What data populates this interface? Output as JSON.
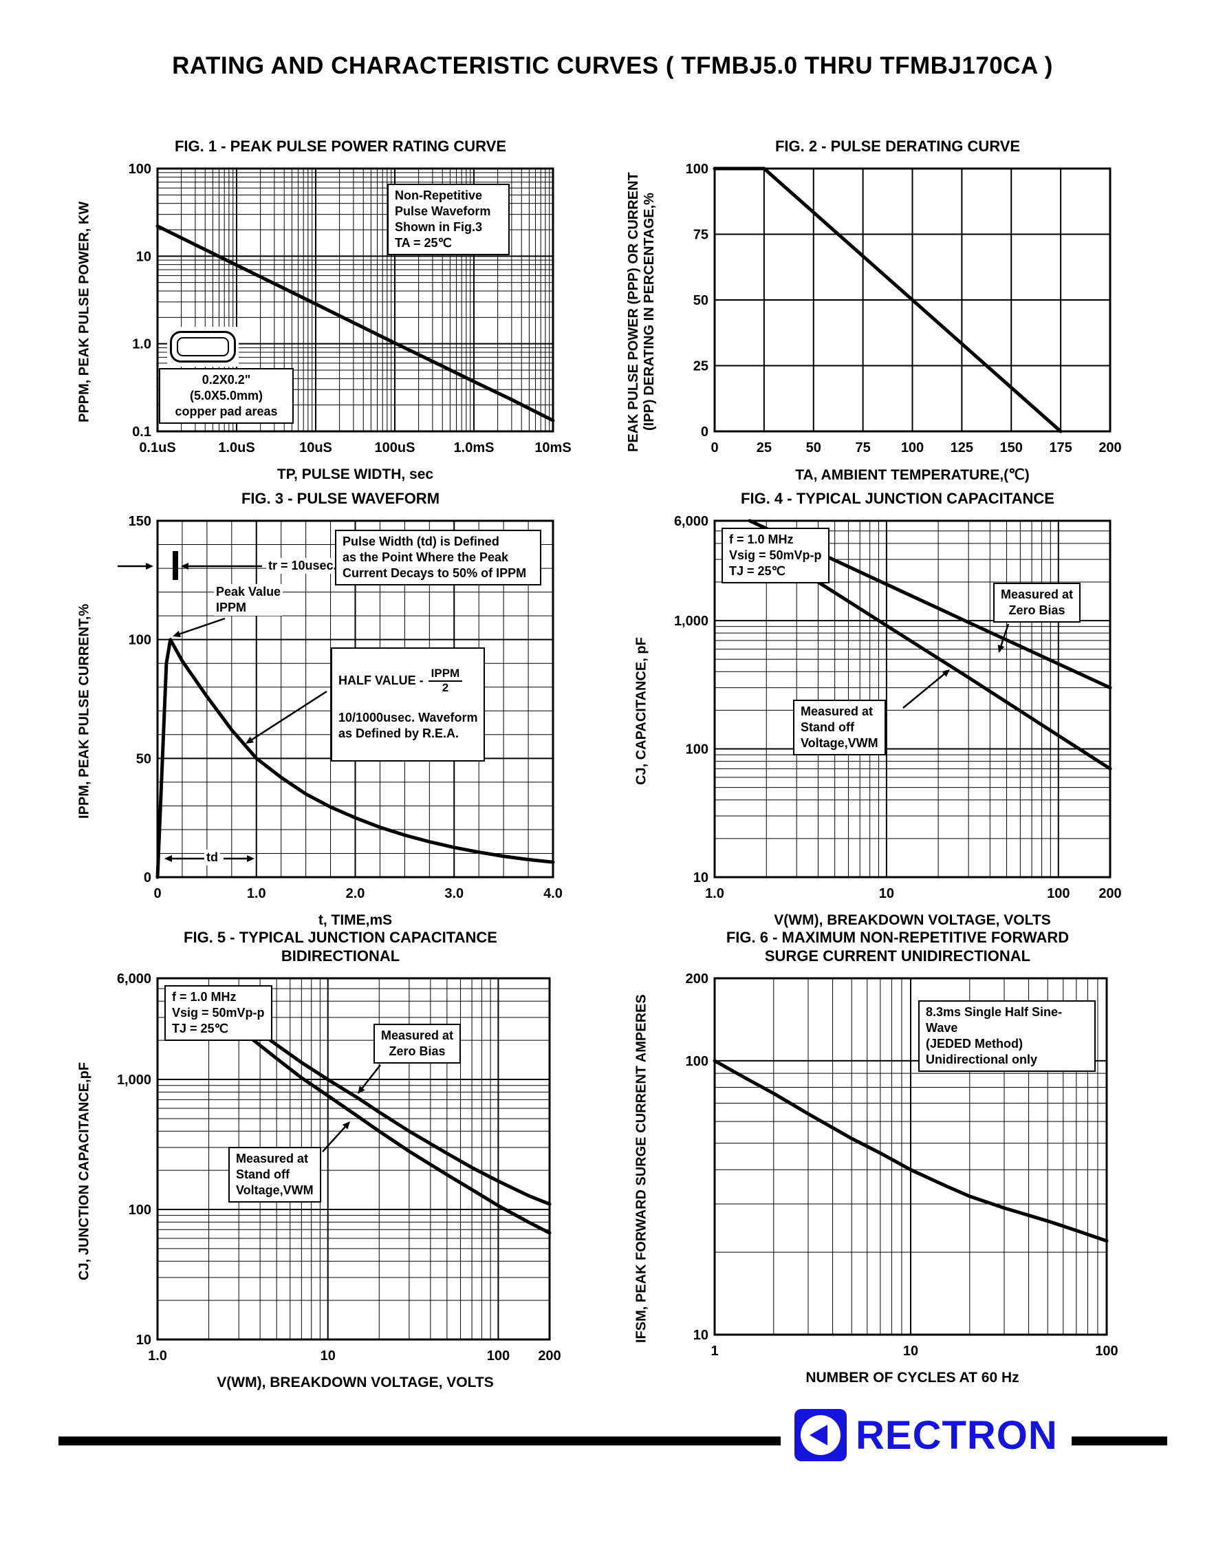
{
  "page": {
    "title": "RATING AND CHARACTERISTIC CURVES ( TFMBJ5.0 THRU TFMBJ170CA )"
  },
  "brand": {
    "name": "RECTRON",
    "color": "#1414dc"
  },
  "chart_data": [
    {
      "id": "fig1",
      "type": "line",
      "title": "FIG. 1 - PEAK PULSE POWER RATING CURVE",
      "xlabel": "TP, PULSE WIDTH, sec",
      "ylabel": "PPPM, PEAK PULSE POWER, KW",
      "xscale": "log",
      "yscale": "log",
      "xlim": [
        1e-07,
        0.01
      ],
      "ylim": [
        0.1,
        100
      ],
      "xticks": [
        {
          "v": 1e-07,
          "label": "0.1uS"
        },
        {
          "v": 1e-06,
          "label": "1.0uS"
        },
        {
          "v": 1e-05,
          "label": "10uS"
        },
        {
          "v": 0.0001,
          "label": "100uS"
        },
        {
          "v": 0.001,
          "label": "1.0mS"
        },
        {
          "v": 0.01,
          "label": "10mS"
        }
      ],
      "yticks": [
        {
          "v": 0.1,
          "label": "0.1"
        },
        {
          "v": 1,
          "label": "1.0"
        },
        {
          "v": 10,
          "label": "10"
        },
        {
          "v": 100,
          "label": "100"
        }
      ],
      "series": [
        {
          "name": "peak-pulse-power",
          "points": [
            [
              1e-07,
              22
            ],
            [
              3e-07,
              13.5
            ],
            [
              1e-06,
              7.9
            ],
            [
              3e-06,
              4.85
            ],
            [
              1e-05,
              2.84
            ],
            [
              3e-05,
              1.74
            ],
            [
              0.0001,
              1.02
            ],
            [
              0.0003,
              0.63
            ],
            [
              0.001,
              0.37
            ],
            [
              0.003,
              0.23
            ],
            [
              0.01,
              0.133
            ]
          ]
        }
      ],
      "annotations": {
        "note": "Non-Repetitive\nPulse Waveform\nShown in Fig.3\nTA = 25℃",
        "pad": "0.2X0.2\"(5.0X5.0mm)\ncopper pad areas"
      }
    },
    {
      "id": "fig2",
      "type": "line",
      "title": "FIG. 2 - PULSE DERATING CURVE",
      "xlabel": "TA, AMBIENT TEMPERATURE,(℃)",
      "ylabel": "PEAK PULSE POWER (PPP) OR CURRENT\n(IPP) DERATING IN PERCENTAGE,%",
      "xscale": "linear",
      "yscale": "linear",
      "xlim": [
        0,
        200
      ],
      "ylim": [
        0,
        100
      ],
      "xgrid": 25,
      "ygrid": 25,
      "xticks": [
        {
          "v": 0,
          "label": "0"
        },
        {
          "v": 25,
          "label": "25"
        },
        {
          "v": 50,
          "label": "50"
        },
        {
          "v": 75,
          "label": "75"
        },
        {
          "v": 100,
          "label": "100"
        },
        {
          "v": 125,
          "label": "125"
        },
        {
          "v": 150,
          "label": "150"
        },
        {
          "v": 175,
          "label": "175"
        },
        {
          "v": 200,
          "label": "200"
        }
      ],
      "yticks": [
        {
          "v": 0,
          "label": "0"
        },
        {
          "v": 25,
          "label": "25"
        },
        {
          "v": 50,
          "label": "50"
        },
        {
          "v": 75,
          "label": "75"
        },
        {
          "v": 100,
          "label": "100"
        }
      ],
      "series": [
        {
          "name": "derating",
          "points": [
            [
              0,
              100
            ],
            [
              25,
              100
            ],
            [
              175,
              0
            ]
          ]
        }
      ]
    },
    {
      "id": "fig3",
      "type": "line",
      "title": "FIG. 3 - PULSE WAVEFORM",
      "xlabel": "t, TIME,mS",
      "ylabel": "IPPM, PEAK PULSE CURRENT,%",
      "xscale": "linear",
      "yscale": "linear",
      "xlim": [
        0,
        4
      ],
      "ylim": [
        0,
        150
      ],
      "xgrid": 0.25,
      "ygrid": 10,
      "xticks": [
        {
          "v": 0,
          "label": "0"
        },
        {
          "v": 1,
          "label": "1.0"
        },
        {
          "v": 2,
          "label": "2.0"
        },
        {
          "v": 3,
          "label": "3.0"
        },
        {
          "v": 4,
          "label": "4.0"
        }
      ],
      "yticks": [
        {
          "v": 0,
          "label": "0"
        },
        {
          "v": 50,
          "label": "50"
        },
        {
          "v": 100,
          "label": "100"
        },
        {
          "v": 150,
          "label": "150"
        }
      ],
      "series": [
        {
          "name": "pulse-waveform",
          "points": [
            [
              0,
              0
            ],
            [
              0.05,
              50
            ],
            [
              0.09,
              90
            ],
            [
              0.13,
              100
            ],
            [
              0.25,
              91
            ],
            [
              0.5,
              76
            ],
            [
              0.75,
              62
            ],
            [
              1,
              50
            ],
            [
              1.25,
              42
            ],
            [
              1.5,
              35
            ],
            [
              1.75,
              29.5
            ],
            [
              2,
              25
            ],
            [
              2.25,
              21
            ],
            [
              2.5,
              17.7
            ],
            [
              2.75,
              14.9
            ],
            [
              3,
              12.5
            ],
            [
              3.25,
              10.5
            ],
            [
              3.5,
              8.8
            ],
            [
              3.75,
              7.4
            ],
            [
              4,
              6.3
            ]
          ]
        }
      ],
      "annotations": {
        "tr": "tr = 10usec.",
        "peak": "Peak Value\nIPPM",
        "defn": "Pulse Width (td) is Defined\nas the Point Where the Peak\nCurrent Decays to 50% of IPPM",
        "half": "HALF VALUE -",
        "half_frac_top": "IPPM",
        "half_frac_bot": "2",
        "wave": "10/1000usec. Waveform\nas Defined by R.E.A.",
        "td": "td"
      }
    },
    {
      "id": "fig4",
      "type": "line",
      "title": "FIG. 4 - TYPICAL JUNCTION CAPACITANCE",
      "xlabel": "V(WM), BREAKDOWN VOLTAGE, VOLTS",
      "ylabel": "CJ, CAPACITANCE, pF",
      "xscale": "log",
      "yscale": "log",
      "xlim": [
        1,
        200
      ],
      "ylim": [
        10,
        6000
      ],
      "xticks": [
        {
          "v": 1,
          "label": "1.0"
        },
        {
          "v": 10,
          "label": "10"
        },
        {
          "v": 100,
          "label": "100"
        },
        {
          "v": 200,
          "label": "200"
        }
      ],
      "yticks": [
        {
          "v": 10,
          "label": "10"
        },
        {
          "v": 100,
          "label": "100"
        },
        {
          "v": 1000,
          "label": "1,000"
        },
        {
          "v": 6000,
          "label": "6,000"
        }
      ],
      "series": [
        {
          "name": "zero-bias",
          "points": [
            [
              1.6,
              6000
            ],
            [
              3,
              4060
            ],
            [
              10,
              1920
            ],
            [
              30,
              970
            ],
            [
              100,
              460
            ],
            [
              200,
              300
            ]
          ]
        },
        {
          "name": "stand-off",
          "points": [
            [
              4,
              2000
            ],
            [
              10,
              915
            ],
            [
              30,
              360
            ],
            [
              100,
              127
            ],
            [
              200,
              70
            ]
          ]
        }
      ],
      "annotations": {
        "cond": "f = 1.0 MHz\nVsig = 50mVp-p\nTJ = 25℃",
        "zero": "Measured at\nZero Bias",
        "standoff": "Measured at\nStand off\nVoltage,VWM"
      }
    },
    {
      "id": "fig5",
      "type": "line",
      "title": "FIG. 5 - TYPICAL JUNCTION CAPACITANCE\nBIDIRECTIONAL",
      "xlabel": "V(WM), BREAKDOWN VOLTAGE, VOLTS",
      "ylabel": "CJ, JUNCTION CAPACITANCE,pF",
      "xscale": "log",
      "yscale": "log",
      "xlim": [
        1,
        200
      ],
      "ylim": [
        10,
        6000
      ],
      "xticks": [
        {
          "v": 1,
          "label": "1.0"
        },
        {
          "v": 10,
          "label": "10"
        },
        {
          "v": 100,
          "label": "100"
        },
        {
          "v": 200,
          "label": "200"
        }
      ],
      "yticks": [
        {
          "v": 10,
          "label": "10"
        },
        {
          "v": 100,
          "label": "100"
        },
        {
          "v": 1000,
          "label": "1,000"
        },
        {
          "v": 6000,
          "label": "6,000"
        }
      ],
      "series": [
        {
          "name": "zero-bias",
          "points": [
            [
              3.5,
              2600
            ],
            [
              5,
              1850
            ],
            [
              7,
              1350
            ],
            [
              10,
              1000
            ],
            [
              15,
              720
            ],
            [
              20,
              560
            ],
            [
              30,
              400
            ],
            [
              50,
              270
            ],
            [
              70,
              210
            ],
            [
              100,
              165
            ],
            [
              150,
              128
            ],
            [
              200,
              110
            ]
          ]
        },
        {
          "name": "stand-off",
          "points": [
            [
              3.5,
              2100
            ],
            [
              5,
              1450
            ],
            [
              7,
              1030
            ],
            [
              10,
              750
            ],
            [
              15,
              520
            ],
            [
              20,
              400
            ],
            [
              30,
              280
            ],
            [
              50,
              185
            ],
            [
              70,
              142
            ],
            [
              100,
              107
            ],
            [
              150,
              80
            ],
            [
              200,
              66
            ]
          ]
        }
      ],
      "annotations": {
        "cond": "f = 1.0 MHz\nVsig = 50mVp-p\nTJ = 25℃",
        "zero": "Measured at\nZero Bias",
        "standoff": "Measured at\nStand off\nVoltage,VWM"
      }
    },
    {
      "id": "fig6",
      "type": "line",
      "title": "FIG. 6 - MAXIMUM NON-REPETITIVE FORWARD\nSURGE CURRENT UNIDIRECTIONAL",
      "xlabel": "NUMBER OF CYCLES AT 60 Hz",
      "ylabel": "IFSM, PEAK FORWARD SURGE CURRENT AMPERES",
      "xscale": "log",
      "yscale": "log",
      "xlim": [
        1,
        100
      ],
      "ylim": [
        10,
        200
      ],
      "xticks": [
        {
          "v": 1,
          "label": "1"
        },
        {
          "v": 10,
          "label": "10"
        },
        {
          "v": 100,
          "label": "100"
        }
      ],
      "yticks": [
        {
          "v": 10,
          "label": "10"
        },
        {
          "v": 100,
          "label": "100"
        },
        {
          "v": 200,
          "label": "200"
        }
      ],
      "series": [
        {
          "name": "surge-current",
          "points": [
            [
              1,
              100
            ],
            [
              1.5,
              85
            ],
            [
              2,
              76
            ],
            [
              3,
              64
            ],
            [
              5,
              52
            ],
            [
              7,
              46
            ],
            [
              10,
              40
            ],
            [
              15,
              35
            ],
            [
              20,
              32
            ],
            [
              30,
              29
            ],
            [
              50,
              26
            ],
            [
              70,
              24
            ],
            [
              100,
              22
            ]
          ]
        }
      ],
      "annotations": {
        "note": "8.3ms Single Half Sine-Wave\n(JEDED Method)\nUnidirectional only"
      }
    }
  ]
}
